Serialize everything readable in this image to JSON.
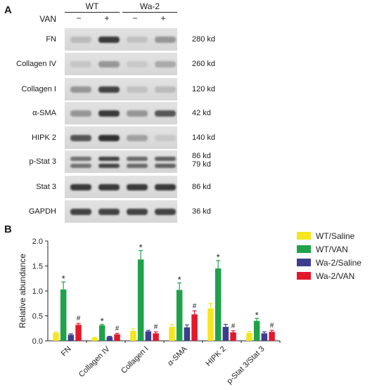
{
  "panel_a": {
    "letter": "A",
    "group_headers": [
      "WT",
      "Wa-2"
    ],
    "treatment_label": "VAN",
    "lane_signs": [
      "−",
      "+",
      "−",
      "+"
    ],
    "blots": [
      {
        "name": "FN",
        "kd": "280 kd",
        "levels": [
          0.15,
          0.85,
          0.12,
          0.35
        ]
      },
      {
        "name": "Collagen IV",
        "kd": "260 kd",
        "levels": [
          0.1,
          0.35,
          0.08,
          0.25
        ]
      },
      {
        "name": "Collagen I",
        "kd": "120 kd",
        "levels": [
          0.35,
          0.8,
          0.12,
          0.15
        ]
      },
      {
        "name": "α-SMA",
        "kd": "42 kd",
        "levels": [
          0.35,
          0.85,
          0.35,
          0.7
        ]
      },
      {
        "name": "HIPK 2",
        "kd": "140 kd",
        "levels": [
          0.7,
          0.9,
          0.3,
          0.08
        ]
      },
      {
        "name": "p-Stat 3",
        "kd": "86 kd",
        "kd2": "79 kd",
        "levels": [
          0.55,
          0.8,
          0.6,
          0.65
        ]
      },
      {
        "name": "Stat 3",
        "kd": "86 kd",
        "levels": [
          0.85,
          0.85,
          0.85,
          0.85
        ]
      },
      {
        "name": "GAPDH",
        "kd": "36 kd",
        "levels": [
          0.8,
          0.8,
          0.8,
          0.8
        ]
      }
    ]
  },
  "panel_b": {
    "letter": "B"
  },
  "chart_data": {
    "type": "bar",
    "ylabel": "Relative abundance",
    "ylim": [
      0,
      2.0
    ],
    "yticks": [
      "0.0",
      "0.5",
      "1.0",
      "1.5",
      "2.0"
    ],
    "categories": [
      "FN",
      "Collagen IV",
      "Collagen I",
      "α-SMA",
      "HIPK 2",
      "p-Stat 3/Stat 3"
    ],
    "legend_position": "top-right",
    "series": [
      {
        "name": "WT/Saline",
        "color": "#f5e61e",
        "values": [
          0.16,
          0.06,
          0.2,
          0.28,
          0.65,
          0.16
        ],
        "errors": [
          0.02,
          0.01,
          0.04,
          0.05,
          0.1,
          0.03
        ]
      },
      {
        "name": "WT/VAN",
        "color": "#1fa24a",
        "values": [
          1.03,
          0.31,
          1.63,
          1.02,
          1.45,
          0.4
        ],
        "errors": [
          0.15,
          0.02,
          0.18,
          0.14,
          0.16,
          0.05
        ]
      },
      {
        "name": "Wa-2/Saline",
        "color": "#3d3d8f",
        "values": [
          0.12,
          0.08,
          0.19,
          0.27,
          0.28,
          0.15
        ],
        "errors": [
          0.02,
          0.01,
          0.02,
          0.05,
          0.05,
          0.03
        ]
      },
      {
        "name": "Wa-2/VAN",
        "color": "#e3182b",
        "values": [
          0.32,
          0.13,
          0.15,
          0.53,
          0.17,
          0.18
        ],
        "errors": [
          0.03,
          0.02,
          0.03,
          0.07,
          0.03,
          0.03
        ]
      }
    ],
    "annotations": [
      {
        "series": 1,
        "category": 0,
        "text": "*"
      },
      {
        "series": 1,
        "category": 1,
        "text": "*"
      },
      {
        "series": 1,
        "category": 2,
        "text": "*"
      },
      {
        "series": 1,
        "category": 3,
        "text": "*"
      },
      {
        "series": 1,
        "category": 4,
        "text": "*"
      },
      {
        "series": 1,
        "category": 5,
        "text": "*"
      },
      {
        "series": 3,
        "category": 0,
        "text": "#"
      },
      {
        "series": 3,
        "category": 1,
        "text": "#"
      },
      {
        "series": 3,
        "category": 2,
        "text": "#"
      },
      {
        "series": 3,
        "category": 3,
        "text": "#"
      },
      {
        "series": 3,
        "category": 4,
        "text": "#"
      },
      {
        "series": 3,
        "category": 5,
        "text": "#"
      }
    ]
  }
}
